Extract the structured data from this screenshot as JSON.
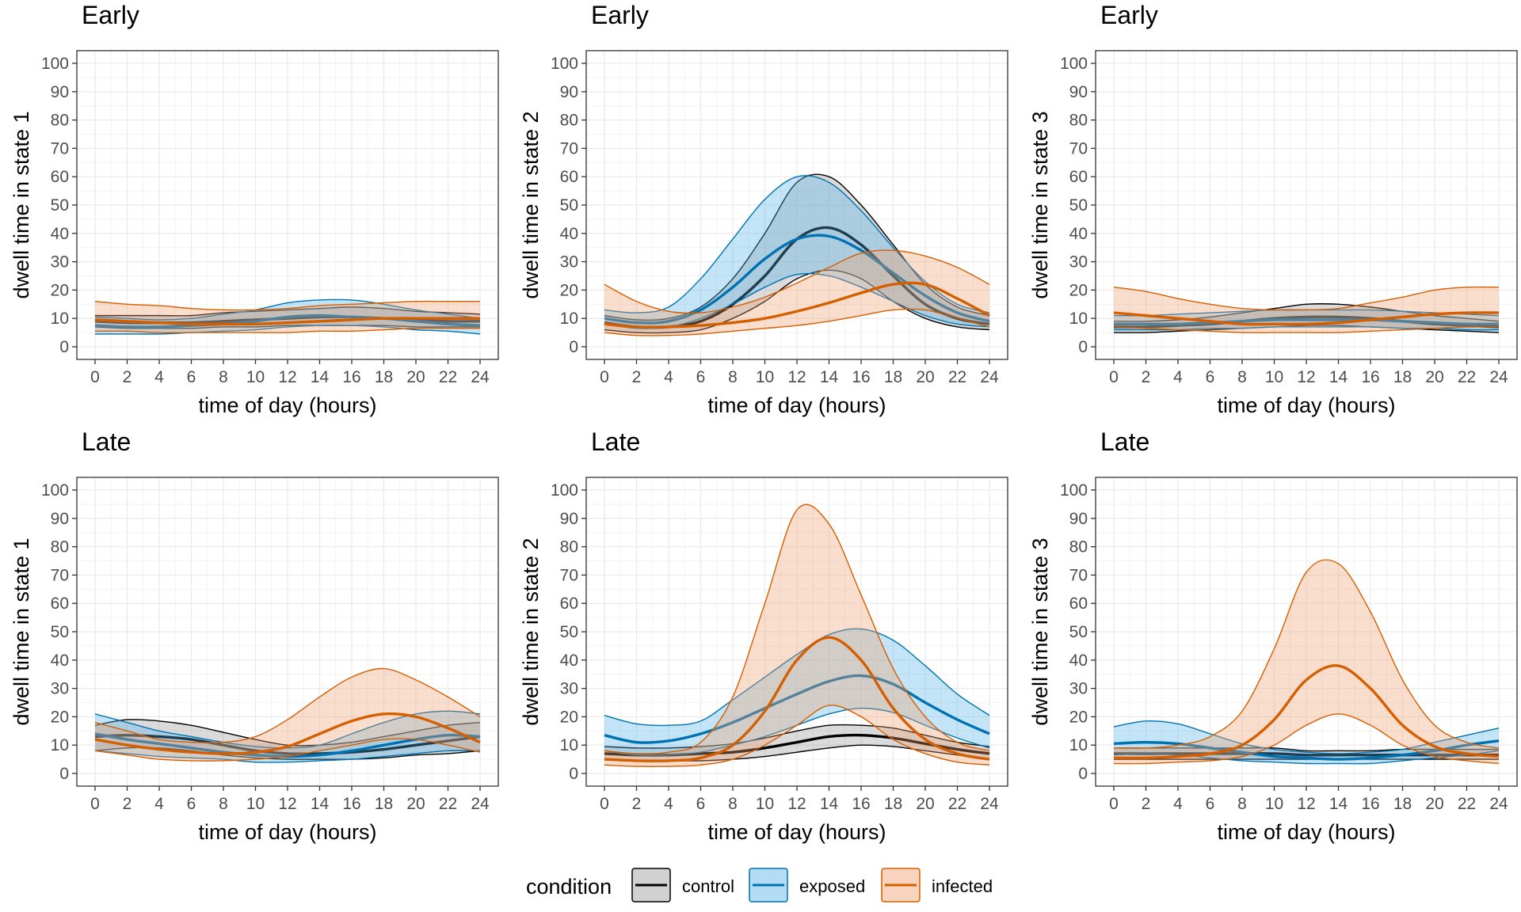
{
  "chart_data": [
    {
      "type": "line",
      "title": "Early",
      "xlabel": "time of day (hours)",
      "ylabel": "dwell time in state 1",
      "xlim": [
        0,
        24
      ],
      "ylim": [
        0,
        100
      ],
      "x": [
        0,
        2,
        4,
        6,
        8,
        10,
        12,
        14,
        16,
        18,
        20,
        22,
        24
      ],
      "xticks": [
        "0",
        "2",
        "4",
        "6",
        "8",
        "10",
        "12",
        "14",
        "16",
        "18",
        "20",
        "22",
        "24"
      ],
      "yticks": [
        "0",
        "10",
        "20",
        "30",
        "40",
        "50",
        "60",
        "70",
        "80",
        "90",
        "100"
      ],
      "grid": true,
      "series": [
        {
          "name": "control",
          "values": [
            9,
            8.5,
            8.5,
            8.5,
            9,
            9.5,
            10,
            10.5,
            10.5,
            10,
            9.5,
            9,
            9
          ],
          "lower": [
            7,
            6.5,
            6.5,
            6.5,
            7,
            7,
            7.5,
            7.5,
            7.5,
            7.5,
            7,
            7,
            7
          ],
          "upper": [
            11,
            11,
            11,
            11,
            12,
            12.5,
            13,
            13.5,
            14,
            13.5,
            12.5,
            12,
            11.5
          ]
        },
        {
          "name": "exposed",
          "values": [
            7.5,
            7,
            7,
            7.5,
            8,
            9,
            10.5,
            11,
            10.5,
            10,
            9,
            8,
            7.5
          ],
          "lower": [
            4.5,
            4.5,
            4.5,
            5,
            5.5,
            6,
            7,
            7.5,
            7.5,
            7,
            6,
            5.5,
            4.5
          ],
          "upper": [
            10.5,
            10,
            9.5,
            10,
            11.5,
            13,
            15.5,
            16.5,
            16.5,
            15,
            13,
            11.5,
            10
          ]
        },
        {
          "name": "infected",
          "values": [
            9.5,
            9,
            8.5,
            8,
            8,
            8,
            8.5,
            9,
            9.5,
            10,
            10,
            10,
            10
          ],
          "lower": [
            5.5,
            5.5,
            5,
            5,
            5,
            5,
            5,
            5.5,
            5.5,
            6,
            6.5,
            6.5,
            6.5
          ],
          "upper": [
            16,
            15,
            14.5,
            13.5,
            13,
            13,
            13.5,
            14.5,
            15,
            15.5,
            16,
            16,
            16
          ]
        }
      ]
    },
    {
      "type": "line",
      "title": "Early",
      "xlabel": "time of day (hours)",
      "ylabel": "dwell time in state 2",
      "xlim": [
        0,
        24
      ],
      "ylim": [
        0,
        100
      ],
      "x": [
        0,
        2,
        4,
        6,
        8,
        10,
        12,
        14,
        16,
        18,
        20,
        22,
        24
      ],
      "xticks": [
        "0",
        "2",
        "4",
        "6",
        "8",
        "10",
        "12",
        "14",
        "16",
        "18",
        "20",
        "22",
        "24"
      ],
      "yticks": [
        "0",
        "10",
        "20",
        "30",
        "40",
        "50",
        "60",
        "70",
        "80",
        "90",
        "100"
      ],
      "grid": true,
      "series": [
        {
          "name": "control",
          "values": [
            8.5,
            7,
            7,
            9,
            15,
            25,
            38,
            42,
            36,
            25,
            15,
            10,
            8
          ],
          "lower": [
            6,
            5,
            5,
            6,
            10,
            16,
            24,
            27,
            24,
            16,
            10,
            7,
            6
          ],
          "upper": [
            11,
            9.5,
            10,
            14,
            24,
            40,
            58,
            60,
            50,
            36,
            22,
            14,
            11
          ]
        },
        {
          "name": "exposed",
          "values": [
            10,
            8.5,
            9,
            13,
            21,
            31,
            38,
            39,
            34,
            26,
            18,
            12,
            9
          ],
          "lower": [
            8,
            6.5,
            7,
            10,
            15,
            21,
            25.5,
            25,
            21,
            16,
            11,
            8,
            7
          ],
          "upper": [
            13,
            12,
            14,
            24,
            38,
            52,
            60,
            58,
            48,
            35,
            23,
            15,
            12
          ]
        },
        {
          "name": "infected",
          "values": [
            8,
            7,
            7,
            7.5,
            8.5,
            10,
            12.5,
            15.5,
            19,
            22,
            22,
            17,
            11
          ],
          "lower": [
            5,
            4,
            4,
            4.5,
            5.5,
            6.5,
            7.5,
            9,
            11,
            13,
            13,
            10,
            7
          ],
          "upper": [
            22,
            16,
            12.5,
            12,
            14,
            17.5,
            22.5,
            28,
            33,
            34,
            32,
            28,
            22
          ]
        }
      ]
    },
    {
      "type": "line",
      "title": "Early",
      "xlabel": "time of day (hours)",
      "ylabel": "dwell time in state 3",
      "xlim": [
        0,
        24
      ],
      "ylim": [
        0,
        100
      ],
      "x": [
        0,
        2,
        4,
        6,
        8,
        10,
        12,
        14,
        16,
        18,
        20,
        22,
        24
      ],
      "xticks": [
        "0",
        "2",
        "4",
        "6",
        "8",
        "10",
        "12",
        "14",
        "16",
        "18",
        "20",
        "22",
        "24"
      ],
      "yticks": [
        "0",
        "10",
        "20",
        "30",
        "40",
        "50",
        "60",
        "70",
        "80",
        "90",
        "100"
      ],
      "grid": true,
      "series": [
        {
          "name": "control",
          "values": [
            7,
            7,
            7.5,
            8,
            9,
            10,
            10.5,
            10.5,
            10,
            9,
            8,
            7.5,
            7
          ],
          "lower": [
            5,
            5,
            5.5,
            6,
            6.5,
            7,
            7.5,
            7.5,
            7,
            6.5,
            6,
            5.5,
            5
          ],
          "upper": [
            9,
            9,
            9.5,
            10.5,
            12,
            13.5,
            15,
            15,
            14,
            12.5,
            11,
            10,
            9
          ]
        },
        {
          "name": "exposed",
          "values": [
            8,
            8,
            8,
            8.5,
            9,
            9.5,
            9.5,
            9.5,
            9.5,
            9,
            8.5,
            8,
            8
          ],
          "lower": [
            6,
            6,
            6,
            6.5,
            6.5,
            7,
            7,
            7,
            7,
            6.5,
            6.5,
            6,
            6
          ],
          "upper": [
            11,
            11,
            11.5,
            12,
            12.5,
            13,
            13,
            13,
            13,
            12.5,
            12,
            11.5,
            11
          ]
        },
        {
          "name": "infected",
          "values": [
            12,
            11,
            10,
            9,
            8,
            8,
            8,
            8.5,
            9.5,
            10.5,
            11.5,
            12,
            12
          ],
          "lower": [
            7,
            6.5,
            6,
            5.5,
            5,
            5,
            5,
            5,
            5.5,
            6,
            6.5,
            7,
            7
          ],
          "upper": [
            21,
            19.5,
            17,
            15,
            13.5,
            13,
            13,
            13.5,
            15.5,
            17.5,
            20,
            21,
            21
          ]
        }
      ]
    },
    {
      "type": "line",
      "title": "Late",
      "xlabel": "time of day (hours)",
      "ylabel": "dwell time in state 1",
      "xlim": [
        0,
        24
      ],
      "ylim": [
        0,
        100
      ],
      "x": [
        0,
        2,
        4,
        6,
        8,
        10,
        12,
        14,
        16,
        18,
        20,
        22,
        24
      ],
      "xticks": [
        "0",
        "2",
        "4",
        "6",
        "8",
        "10",
        "12",
        "14",
        "16",
        "18",
        "20",
        "22",
        "24"
      ],
      "yticks": [
        "0",
        "10",
        "20",
        "30",
        "40",
        "50",
        "60",
        "70",
        "80",
        "90",
        "100"
      ],
      "grid": true,
      "series": [
        {
          "name": "control",
          "values": [
            13,
            13.5,
            13,
            12,
            10,
            8,
            7,
            7,
            7.5,
            8.5,
            10,
            11.5,
            13
          ],
          "lower": [
            8,
            9,
            9,
            8,
            6.5,
            5.5,
            5,
            5,
            5,
            5.5,
            6.5,
            7,
            8
          ],
          "upper": [
            17,
            19,
            18.5,
            17,
            14.5,
            12,
            10,
            10,
            11,
            13,
            15,
            17,
            18
          ]
        },
        {
          "name": "exposed",
          "values": [
            14,
            12,
            10.5,
            9,
            7.5,
            6.5,
            6,
            6.5,
            8,
            10,
            12,
            13.5,
            13
          ],
          "lower": [
            8,
            7,
            6,
            5.5,
            5,
            4,
            4,
            4.5,
            5,
            6,
            7,
            8,
            8
          ],
          "upper": [
            21,
            18,
            15,
            13,
            11,
            9.5,
            9,
            10,
            14,
            18,
            21,
            22,
            21
          ]
        },
        {
          "name": "infected",
          "values": [
            12,
            10,
            8.5,
            7.5,
            7,
            7.5,
            9.5,
            14,
            18.5,
            21,
            20,
            16,
            11
          ],
          "lower": [
            8,
            6.5,
            5,
            4.5,
            4.5,
            5,
            6,
            8,
            10,
            12,
            12,
            10,
            7.5
          ],
          "upper": [
            18,
            15,
            12,
            11,
            11,
            13,
            19,
            27,
            34,
            37,
            33,
            27,
            20
          ]
        }
      ]
    },
    {
      "type": "line",
      "title": "Late",
      "xlabel": "time of day (hours)",
      "ylabel": "dwell time in state 2",
      "xlim": [
        0,
        24
      ],
      "ylim": [
        0,
        100
      ],
      "x": [
        0,
        2,
        4,
        6,
        8,
        10,
        12,
        14,
        16,
        18,
        20,
        22,
        24
      ],
      "xticks": [
        "0",
        "2",
        "4",
        "6",
        "8",
        "10",
        "12",
        "14",
        "16",
        "18",
        "20",
        "22",
        "24"
      ],
      "yticks": [
        "0",
        "10",
        "20",
        "30",
        "40",
        "50",
        "60",
        "70",
        "80",
        "90",
        "100"
      ],
      "grid": true,
      "series": [
        {
          "name": "control",
          "values": [
            7,
            6.5,
            6.5,
            7,
            7.5,
            9,
            11,
            13,
            13.5,
            12.5,
            10.5,
            8.5,
            7
          ],
          "lower": [
            5,
            4.5,
            4.5,
            4.5,
            5,
            6,
            7.5,
            9,
            10,
            9.5,
            8,
            6.5,
            5
          ],
          "upper": [
            9.5,
            9,
            9,
            9.5,
            10.5,
            12.5,
            15,
            17,
            17,
            16,
            13.5,
            11,
            9.5
          ]
        },
        {
          "name": "exposed",
          "values": [
            13.5,
            11,
            11.5,
            14,
            18,
            23,
            28,
            32.5,
            34.5,
            31.5,
            25,
            19,
            14
          ],
          "lower": [
            8,
            6.5,
            6.5,
            7.5,
            10,
            13,
            17,
            21,
            23,
            21.5,
            17,
            12.5,
            9
          ],
          "upper": [
            20.5,
            17.5,
            17,
            18.5,
            26,
            34,
            42,
            49,
            51,
            47,
            38,
            28,
            20.5
          ]
        },
        {
          "name": "infected",
          "values": [
            5,
            4.5,
            4.5,
            5.5,
            10,
            22,
            40,
            48,
            40,
            23,
            12,
            7,
            5
          ],
          "lower": [
            3,
            2.5,
            2.5,
            3,
            5,
            10,
            17,
            24,
            20,
            12,
            7,
            4,
            3
          ],
          "upper": [
            8,
            7,
            7.5,
            11,
            27,
            60,
            93,
            88,
            63,
            37,
            20,
            11,
            8
          ]
        }
      ]
    },
    {
      "type": "line",
      "title": "Late",
      "xlabel": "time of day (hours)",
      "ylabel": "dwell time in state 3",
      "xlim": [
        0,
        24
      ],
      "ylim": [
        0,
        100
      ],
      "x": [
        0,
        2,
        4,
        6,
        8,
        10,
        12,
        14,
        16,
        18,
        20,
        22,
        24
      ],
      "xticks": [
        "0",
        "2",
        "4",
        "6",
        "8",
        "10",
        "12",
        "14",
        "16",
        "18",
        "20",
        "22",
        "24"
      ],
      "yticks": [
        "0",
        "10",
        "20",
        "30",
        "40",
        "50",
        "60",
        "70",
        "80",
        "90",
        "100"
      ],
      "grid": true,
      "series": [
        {
          "name": "control",
          "values": [
            7,
            7,
            7,
            7,
            7,
            7,
            6.5,
            6.5,
            6.5,
            6.5,
            6.5,
            6.5,
            6.5
          ],
          "lower": [
            5,
            5,
            5,
            5,
            5,
            5,
            5,
            5,
            5,
            5,
            5,
            5,
            5
          ],
          "upper": [
            9,
            9,
            9,
            9,
            9,
            9,
            8,
            8,
            8,
            8.5,
            8.5,
            8.5,
            8.5
          ]
        },
        {
          "name": "exposed",
          "values": [
            10.5,
            11,
            10.5,
            9,
            7.5,
            6,
            5.5,
            5,
            5.5,
            6.5,
            8,
            10,
            11.5
          ],
          "lower": [
            6.5,
            7,
            6.5,
            5.5,
            4.5,
            4,
            3.5,
            3.5,
            3.5,
            4.5,
            5.5,
            6.5,
            8
          ],
          "upper": [
            16.5,
            18.5,
            17.5,
            14,
            10.5,
            8.5,
            7.5,
            7,
            7.5,
            8.5,
            11,
            13.5,
            16
          ]
        },
        {
          "name": "infected",
          "values": [
            5.5,
            5.5,
            6,
            7,
            10,
            19,
            33,
            38,
            30,
            17,
            9.5,
            7,
            6
          ],
          "lower": [
            3.5,
            3.5,
            4,
            4.5,
            6,
            10,
            17,
            21,
            17,
            10,
            6,
            4.5,
            3.5
          ],
          "upper": [
            9,
            9,
            10,
            13,
            22,
            44,
            71,
            74,
            57,
            33,
            17,
            11,
            9
          ]
        }
      ]
    }
  ],
  "legend": {
    "title": "condition",
    "placement": "bottom",
    "items": [
      {
        "name": "control",
        "color": "#000000",
        "fill": "#999999",
        "label": "control"
      },
      {
        "name": "exposed",
        "color": "#0072B2",
        "fill": "#56B4E9",
        "label": "exposed"
      },
      {
        "name": "infected",
        "color": "#D55E00",
        "fill": "#F0A070",
        "label": "infected"
      }
    ]
  }
}
